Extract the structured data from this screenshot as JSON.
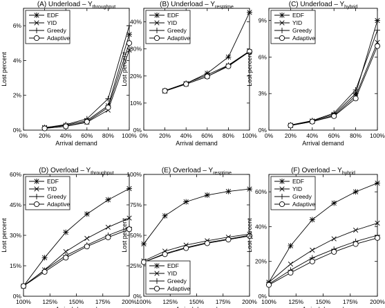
{
  "x_label": "Arrival demand",
  "y_label": "Lost percent",
  "legend_labels": [
    "EDF",
    "YID",
    "Greedy",
    "Adaptive"
  ],
  "chart_data": [
    {
      "type": "line",
      "title_main": "(A) Underload – Y",
      "title_sub": "throughput",
      "x": [
        "20%",
        "40%",
        "60%",
        "80%",
        "100%"
      ],
      "xticks": [
        "0%",
        "20%",
        "40%",
        "60%",
        "80%",
        "100%"
      ],
      "yticks": [
        "0%",
        "2%",
        "4%",
        "6%"
      ],
      "xlim": [
        0,
        100
      ],
      "ylim": [
        0,
        7
      ],
      "legend_position": "top-left",
      "series": [
        {
          "name": "EDF",
          "values": [
            0.15,
            0.28,
            0.55,
            1.4,
            5.5
          ]
        },
        {
          "name": "YID",
          "values": [
            0.12,
            0.22,
            0.45,
            1.15,
            4.6
          ]
        },
        {
          "name": "Greedy",
          "values": [
            0.14,
            0.32,
            0.65,
            1.8,
            6.0
          ]
        },
        {
          "name": "Adaptive",
          "values": [
            0.1,
            0.22,
            0.48,
            1.3,
            5.0
          ]
        }
      ]
    },
    {
      "type": "line",
      "title_main": "(B) Underload – Y",
      "title_sub": "resptime",
      "x": [
        "20%",
        "40%",
        "60%",
        "80%",
        "100%"
      ],
      "xticks": [
        "0%",
        "20%",
        "40%",
        "60%",
        "80%",
        "100%"
      ],
      "yticks": [
        "0%",
        "10%",
        "20%",
        "30%",
        "40%"
      ],
      "xlim": [
        0,
        100
      ],
      "ylim": [
        0,
        45
      ],
      "legend_position": "top-left",
      "series": [
        {
          "name": "EDF",
          "values": [
            14.5,
            17.2,
            21.0,
            27.0,
            43.5
          ]
        },
        {
          "name": "YID",
          "values": [
            14.4,
            17.0,
            19.8,
            23.8,
            29.0
          ]
        },
        {
          "name": "Greedy",
          "values": [
            14.6,
            17.3,
            20.4,
            24.0,
            29.2
          ]
        },
        {
          "name": "Adaptive",
          "values": [
            14.5,
            17.0,
            19.8,
            23.6,
            29.0
          ]
        }
      ]
    },
    {
      "type": "line",
      "title_main": "(C) Underload – Y",
      "title_sub": "hybrid",
      "x": [
        "20%",
        "40%",
        "60%",
        "80%",
        "100%"
      ],
      "xticks": [
        "0%",
        "20%",
        "40%",
        "60%",
        "80%",
        "100%"
      ],
      "yticks": [
        "0%",
        "3%",
        "6%",
        "9%"
      ],
      "xlim": [
        0,
        100
      ],
      "ylim": [
        0,
        10
      ],
      "legend_position": "top-left",
      "series": [
        {
          "name": "EDF",
          "values": [
            0.4,
            0.75,
            1.3,
            3.0,
            9.0
          ]
        },
        {
          "name": "YID",
          "values": [
            0.38,
            0.7,
            1.2,
            2.8,
            7.2
          ]
        },
        {
          "name": "Greedy",
          "values": [
            0.42,
            0.78,
            1.4,
            3.3,
            8.2
          ]
        },
        {
          "name": "Adaptive",
          "values": [
            0.38,
            0.7,
            1.15,
            2.6,
            6.9
          ]
        }
      ]
    },
    {
      "type": "line",
      "title_main": "(D) Overload – Y",
      "title_sub": "throughput",
      "x": [
        "100%",
        "120%",
        "140%",
        "160%",
        "180%",
        "200%"
      ],
      "xticks": [
        "100%",
        "125%",
        "150%",
        "175%",
        "200%"
      ],
      "yticks": [
        "0%",
        "15%",
        "30%",
        "45%",
        "60%"
      ],
      "xlim": [
        100,
        200
      ],
      "ylim": [
        0,
        60
      ],
      "legend_position": "top-left",
      "series": [
        {
          "name": "EDF",
          "values": [
            5.0,
            19.0,
            31.5,
            40.5,
            47.5,
            53.0
          ]
        },
        {
          "name": "YID",
          "values": [
            5.0,
            13.0,
            22.0,
            28.5,
            34.0,
            38.5
          ]
        },
        {
          "name": "Greedy",
          "values": [
            5.2,
            12.8,
            20.0,
            25.2,
            30.0,
            34.0
          ]
        },
        {
          "name": "Adaptive",
          "values": [
            5.0,
            12.0,
            19.0,
            24.5,
            29.0,
            33.0
          ]
        }
      ]
    },
    {
      "type": "line",
      "title_main": "(E) Overload – Y",
      "title_sub": "resptime",
      "x": [
        "100%",
        "120%",
        "140%",
        "160%",
        "180%",
        "200%"
      ],
      "xticks": [
        "100%",
        "125%",
        "150%",
        "175%",
        "200%"
      ],
      "yticks": [
        "0%",
        "25%",
        "50%",
        "75%",
        "100%"
      ],
      "xlim": [
        100,
        200
      ],
      "ylim": [
        0,
        100
      ],
      "legend_position": "bottom-left",
      "series": [
        {
          "name": "EDF",
          "values": [
            43.0,
            66.0,
            77.5,
            83.0,
            86.0,
            88.0
          ]
        },
        {
          "name": "YID",
          "values": [
            29.0,
            37.0,
            42.0,
            45.5,
            48.5,
            51.0
          ]
        },
        {
          "name": "Greedy",
          "values": [
            28.0,
            35.0,
            40.0,
            44.0,
            47.0,
            50.0
          ]
        },
        {
          "name": "Adaptive",
          "values": [
            28.0,
            34.5,
            39.5,
            43.5,
            46.5,
            49.5
          ]
        }
      ]
    },
    {
      "type": "line",
      "title_main": "(F) Overload – Y",
      "title_sub": "hybrid",
      "x": [
        "100%",
        "120%",
        "140%",
        "160%",
        "180%",
        "200%"
      ],
      "xticks": [
        "100%",
        "125%",
        "150%",
        "175%",
        "200%"
      ],
      "yticks": [
        "0%",
        "20%",
        "40%",
        "60%"
      ],
      "xlim": [
        100,
        200
      ],
      "ylim": [
        0,
        70
      ],
      "legend_position": "top-left",
      "series": [
        {
          "name": "EDF",
          "values": [
            8.0,
            29.0,
            44.0,
            53.5,
            60.0,
            65.0
          ]
        },
        {
          "name": "YID",
          "values": [
            8.0,
            18.5,
            26.5,
            33.0,
            38.0,
            42.0
          ]
        },
        {
          "name": "Greedy",
          "values": [
            7.0,
            15.0,
            22.0,
            27.0,
            31.5,
            35.0
          ]
        },
        {
          "name": "Adaptive",
          "values": [
            6.5,
            13.5,
            20.0,
            25.5,
            30.0,
            33.5
          ]
        }
      ]
    }
  ]
}
